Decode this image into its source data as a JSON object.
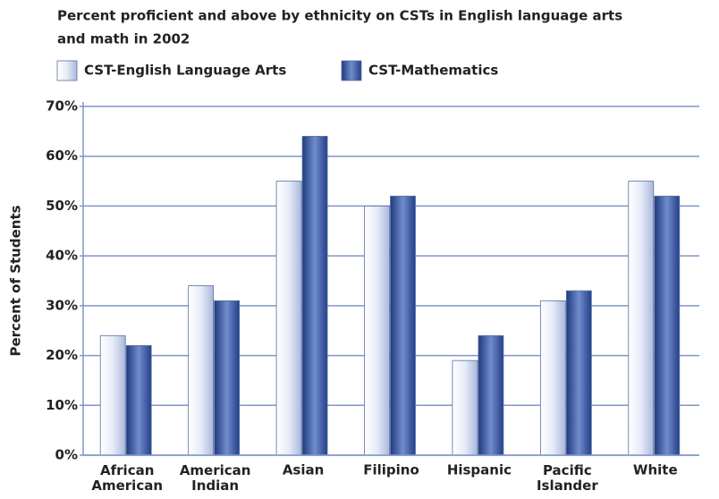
{
  "chart_data": {
    "type": "bar",
    "title": [
      "Percent proficient and above by ethnicity on CSTs in English language arts",
      "and math in 2002"
    ],
    "y_label": "Percent of Students",
    "categories": [
      "African American",
      "American Indian",
      "Asian",
      "Filipino",
      "Hispanic",
      "Pacific Islander",
      "White"
    ],
    "series": [
      {
        "name": "CST-English Language Arts",
        "color": "#dfe6f5",
        "values": [
          24,
          34,
          55,
          50,
          19,
          31,
          55
        ]
      },
      {
        "name": "CST-Mathematics",
        "color": "#3d5fa8",
        "values": [
          22,
          31,
          64,
          52,
          24,
          33,
          52
        ]
      }
    ],
    "ylim": [
      0,
      70
    ],
    "yticks": [
      {
        "value": 0,
        "label": "0%"
      },
      {
        "value": 10,
        "label": "10%"
      },
      {
        "value": 20,
        "label": "20%"
      },
      {
        "value": 30,
        "label": "30%"
      },
      {
        "value": 40,
        "label": "40%"
      },
      {
        "value": 50,
        "label": "50%"
      },
      {
        "value": 60,
        "label": "60%"
      },
      {
        "value": 70,
        "label": "70%"
      }
    ],
    "grid": true,
    "legend": "top-left"
  }
}
